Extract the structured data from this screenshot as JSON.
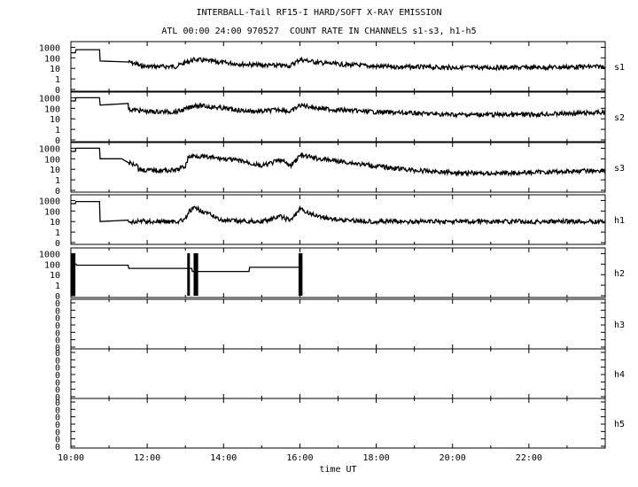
{
  "chart_data": {
    "type": "line",
    "title": "INTERBALL-Tail RF15-I HARD/SOFT X-RAY EMISSION",
    "subtitle": "ATL 00:00 24:00 970527  COUNT RATE IN CHANNELS s1-s3, h1-h5",
    "xlabel": "time UT",
    "x_ticks": [
      "10:00",
      "12:00",
      "14:00",
      "16:00",
      "18:00",
      "20:00",
      "22:00"
    ],
    "xlim": [
      "10:00",
      "24:00"
    ],
    "y_scale": "log",
    "y_tick_labels": [
      "1000",
      "100",
      "10",
      "1",
      "0"
    ],
    "panels": [
      {
        "name": "s1",
        "series": [
          {
            "time": [
              "10:00",
              "10:07",
              "10:08",
              "10:45",
              "10:46",
              "11:30",
              "11:45",
              "11:46",
              "12:00",
              "12:45",
              "13:00",
              "13:15",
              "13:30",
              "14:00",
              "14:30",
              "15:00",
              "15:45",
              "16:00",
              "16:15",
              "16:30",
              "17:00",
              "17:30",
              "18:00",
              "20:00",
              "22:00",
              "24:00"
            ],
            "values": [
              300,
              300,
              600,
              600,
              50,
              40,
              25,
              18,
              15,
              15,
              35,
              70,
              55,
              35,
              25,
              20,
              18,
              70,
              50,
              35,
              25,
              20,
              15,
              12,
              12,
              15
            ]
          }
        ]
      },
      {
        "name": "s2",
        "series": [
          {
            "time": [
              "10:00",
              "10:07",
              "10:08",
              "10:45",
              "10:46",
              "11:30",
              "11:31",
              "12:00",
              "12:45",
              "13:00",
              "13:15",
              "13:30",
              "14:00",
              "14:30",
              "15:00",
              "15:30",
              "15:45",
              "16:00",
              "16:15",
              "16:30",
              "17:00",
              "17:30",
              "18:00",
              "20:00",
              "22:00",
              "24:00"
            ],
            "values": [
              500,
              500,
              1000,
              1000,
              200,
              200,
              80,
              50,
              45,
              80,
              200,
              160,
              100,
              60,
              50,
              80,
              45,
              200,
              150,
              100,
              70,
              55,
              45,
              25,
              25,
              40
            ]
          }
        ]
      },
      {
        "name": "s3",
        "series": [
          {
            "time": [
              "10:00",
              "10:07",
              "10:08",
              "10:45",
              "10:46",
              "11:20",
              "11:30",
              "11:45",
              "11:46",
              "12:00",
              "12:45",
              "13:00",
              "13:05",
              "13:15",
              "13:30",
              "14:00",
              "14:30",
              "15:00",
              "15:30",
              "15:45",
              "16:00",
              "16:15",
              "16:30",
              "17:00",
              "18:00",
              "19:00",
              "20:00",
              "21:00",
              "22:00",
              "24:00"
            ],
            "values": [
              500,
              500,
              1000,
              1000,
              100,
              100,
              40,
              30,
              10,
              8,
              8,
              20,
              150,
              200,
              150,
              100,
              60,
              20,
              80,
              20,
              200,
              150,
              100,
              60,
              20,
              8,
              5,
              4,
              5,
              8
            ]
          }
        ]
      },
      {
        "name": "h1",
        "series": [
          {
            "time": [
              "10:00",
              "10:07",
              "10:08",
              "10:45",
              "10:46",
              "11:30",
              "11:45",
              "11:46",
              "12:00",
              "12:45",
              "13:00",
              "13:05",
              "13:15",
              "13:30",
              "13:45",
              "14:00",
              "15:00",
              "15:30",
              "15:45",
              "16:00",
              "16:15",
              "16:30",
              "17:00",
              "18:00",
              "20:00",
              "22:00",
              "24:00"
            ],
            "values": [
              500,
              500,
              800,
              800,
              10,
              10,
              8,
              12,
              10,
              10,
              15,
              80,
              200,
              80,
              30,
              12,
              10,
              30,
              12,
              150,
              60,
              30,
              15,
              10,
              10,
              10,
              10
            ]
          }
        ]
      },
      {
        "name": "h2",
        "series": [
          {
            "time": [
              "10:00",
              "10:08",
              "10:09",
              "11:30",
              "11:31",
              "13:10",
              "13:11",
              "14:40",
              "14:41",
              "16:00",
              "16:01"
            ],
            "values": [
              100,
              100,
              80,
              80,
              40,
              40,
              20,
              20,
              50,
              50,
              0
            ]
          }
        ],
        "spikes": [
          "10:02",
          "10:05",
          "13:05",
          "13:15",
          "13:18",
          "16:00",
          "16:02"
        ]
      },
      {
        "name": "h3",
        "series": [],
        "y_tick_labels": [
          "0"
        ]
      },
      {
        "name": "h4",
        "series": [],
        "y_tick_labels": [
          "0"
        ]
      },
      {
        "name": "h5",
        "series": [],
        "y_tick_labels": [
          "0"
        ]
      }
    ],
    "grid": false,
    "legend": "none"
  }
}
